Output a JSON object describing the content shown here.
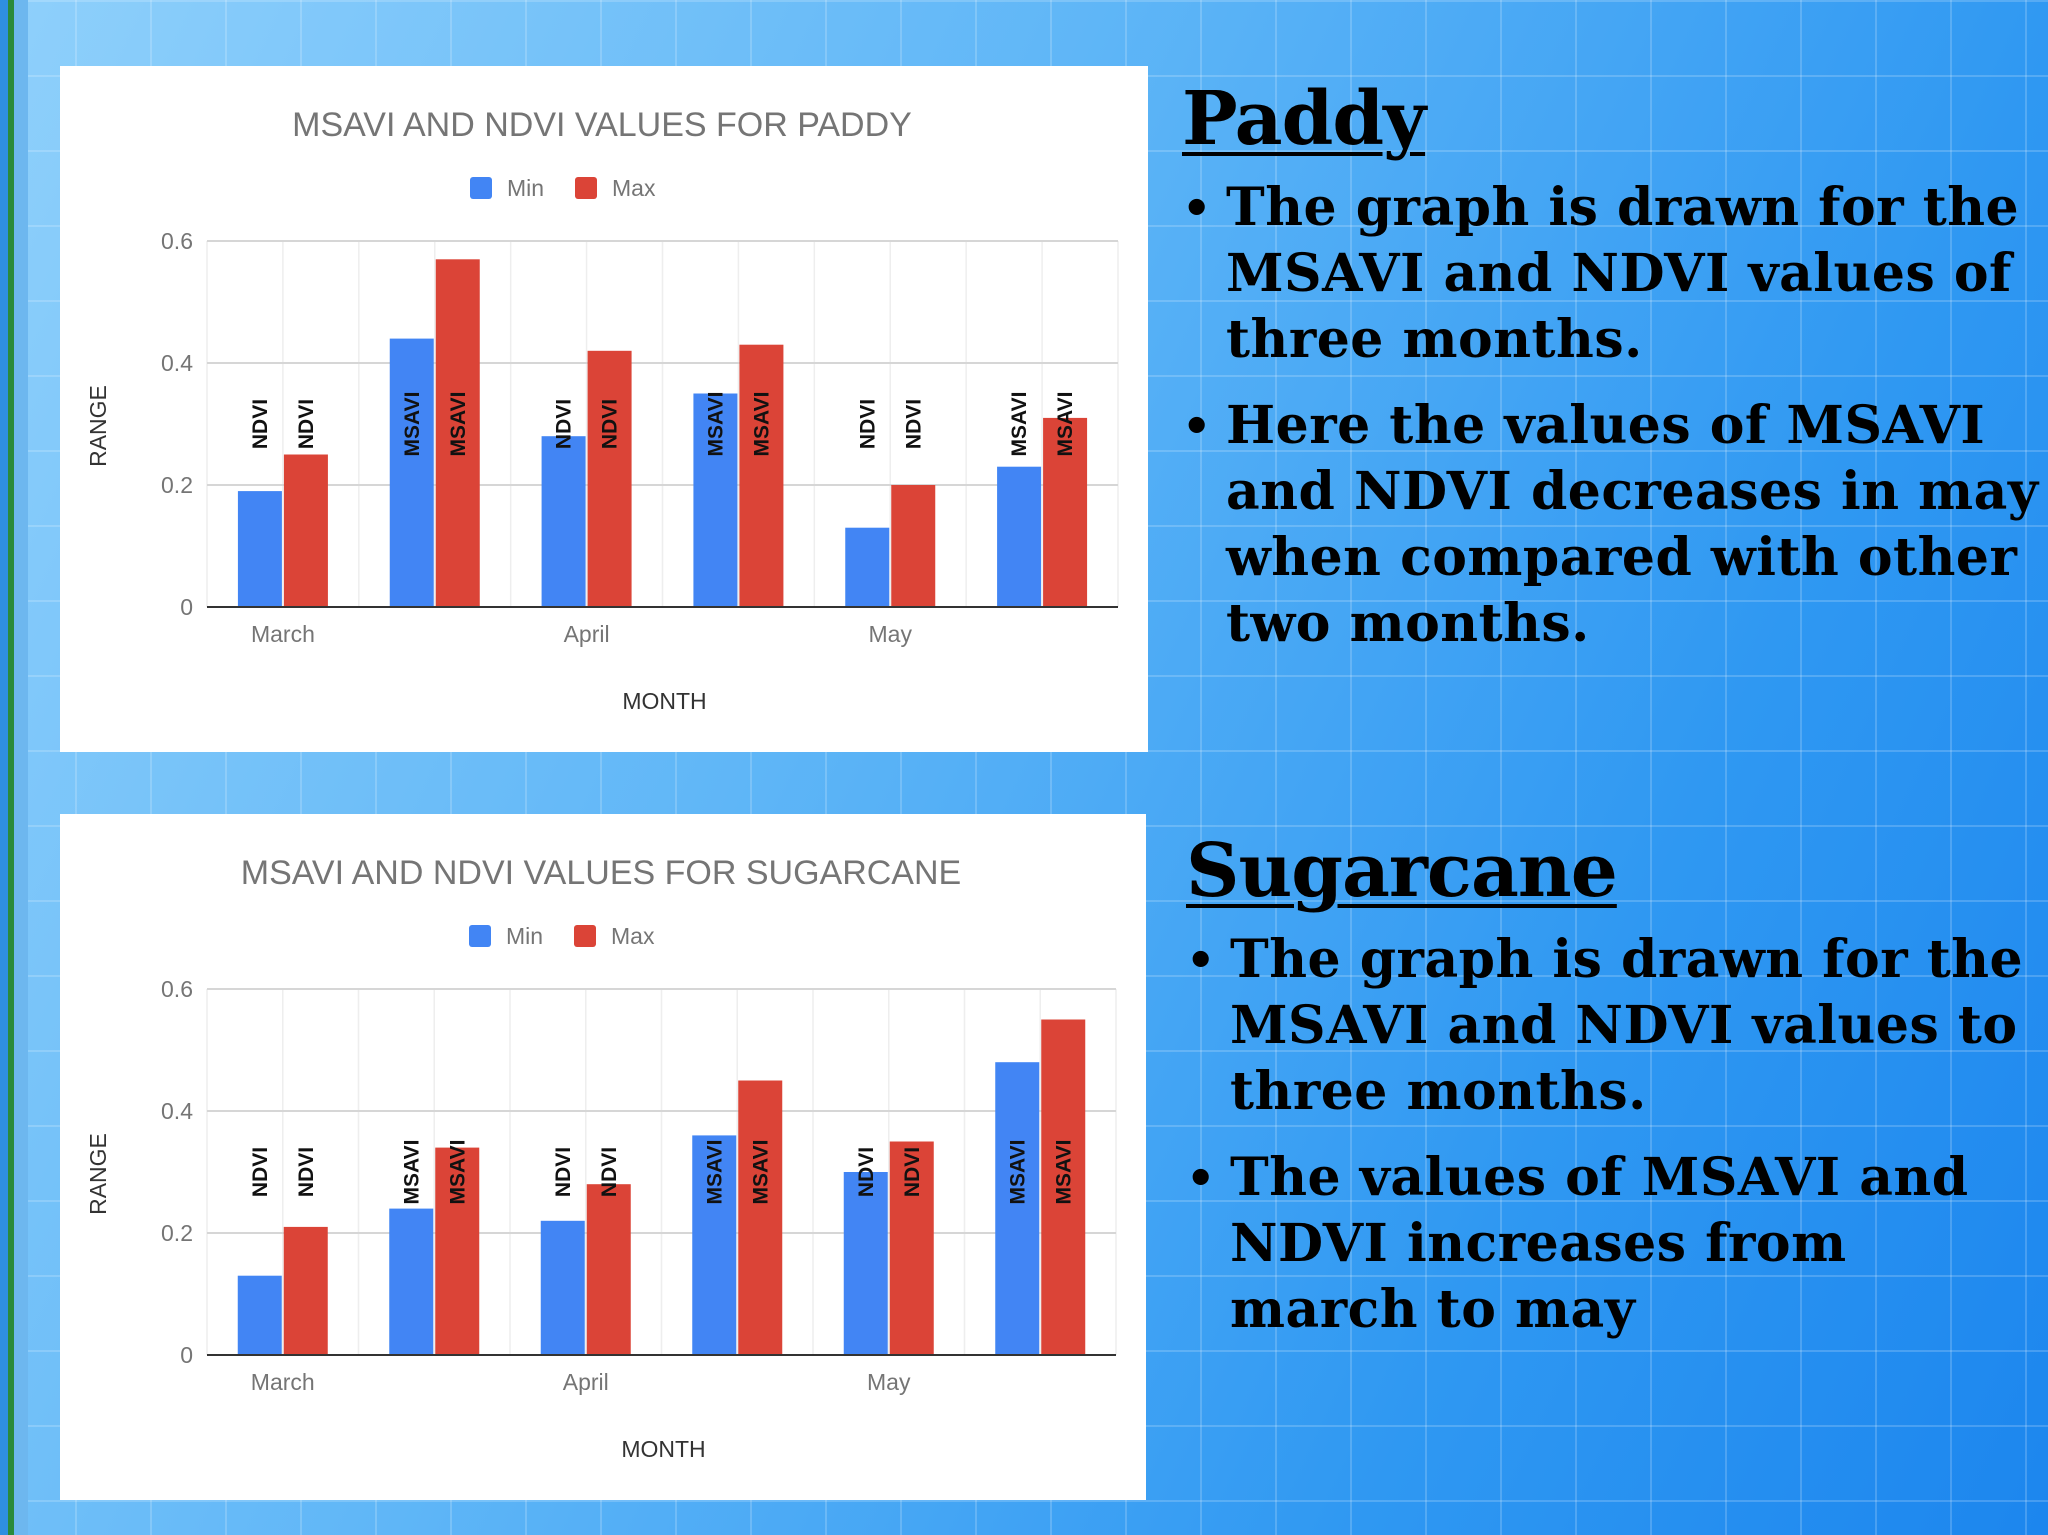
{
  "colors": {
    "min": "#4285f4",
    "max": "#db4437"
  },
  "legend": {
    "min_label": "Min",
    "max_label": "Max"
  },
  "chart_data": [
    {
      "type": "bar",
      "title": "MSAVI AND NDVI VALUES FOR PADDY",
      "xlabel": "MONTH",
      "ylabel": "RANGE",
      "ylim": [
        0,
        0.6
      ],
      "yticks": [
        "0",
        "0.2",
        "0.4",
        "0.6"
      ],
      "grid": true,
      "legend_position": "top",
      "categories": [
        "March",
        "",
        "April",
        "",
        "May",
        ""
      ],
      "series": [
        {
          "name": "Min",
          "values": [
            0.19,
            0.44,
            0.28,
            0.35,
            0.13,
            0.23
          ],
          "labels": [
            "NDVI",
            "MSAVI",
            "NDVI",
            "MSAVI",
            "NDVI",
            "MSAVI"
          ]
        },
        {
          "name": "Max",
          "values": [
            0.25,
            0.57,
            0.42,
            0.43,
            0.2,
            0.31
          ],
          "labels": [
            "NDVI",
            "MSAVI",
            "NDVI",
            "MSAVI",
            "NDVI",
            "MSAVI"
          ]
        }
      ]
    },
    {
      "type": "bar",
      "title": "MSAVI AND NDVI VALUES FOR SUGARCANE",
      "xlabel": "MONTH",
      "ylabel": "RANGE",
      "ylim": [
        0,
        0.6
      ],
      "yticks": [
        "0",
        "0.2",
        "0.4",
        "0.6"
      ],
      "grid": true,
      "legend_position": "top",
      "categories": [
        "March",
        "",
        "April",
        "",
        "May",
        ""
      ],
      "series": [
        {
          "name": "Min",
          "values": [
            0.13,
            0.24,
            0.22,
            0.36,
            0.3,
            0.48
          ],
          "labels": [
            "NDVI",
            "MSAVI",
            "NDVI",
            "MSAVI",
            "NDVI",
            "MSAVI"
          ]
        },
        {
          "name": "Max",
          "values": [
            0.21,
            0.34,
            0.28,
            0.45,
            0.35,
            0.55
          ],
          "labels": [
            "NDVI",
            "MSAVI",
            "NDVI",
            "MSAVI",
            "NDVI",
            "MSAVI"
          ]
        }
      ]
    }
  ],
  "paddy": {
    "heading": "Paddy",
    "bullets": [
      "The graph is drawn for the MSAVI and NDVI values of three months.",
      "Here the values of MSAVI and NDVI decreases in may when compared with other two months."
    ]
  },
  "sugarcane": {
    "heading": "Sugarcane",
    "bullets": [
      "The graph is drawn for the MSAVI and NDVI values to three months.",
      "The values of  MSAVI and NDVI increases from march to may"
    ]
  }
}
